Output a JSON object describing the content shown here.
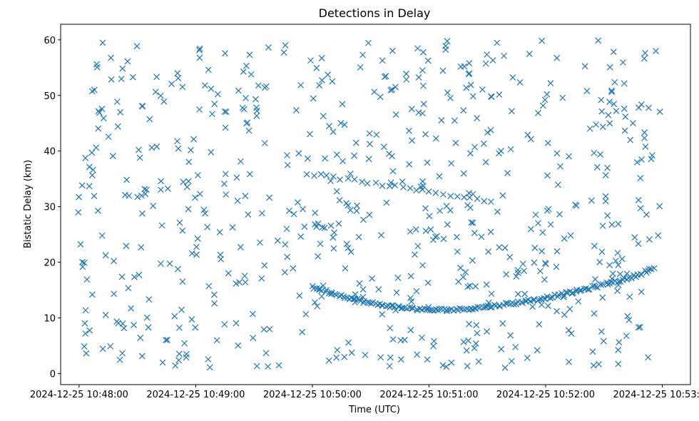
{
  "chart_data": {
    "type": "scatter",
    "title": "Detections in Delay",
    "xlabel": "Time (UTC)",
    "ylabel": "Bistatic Delay (km)",
    "x_ticks": [
      {
        "t": 0,
        "label": "2024-12-25 10:48:00"
      },
      {
        "t": 60,
        "label": "2024-12-25 10:49:00"
      },
      {
        "t": 120,
        "label": "2024-12-25 10:50:00"
      },
      {
        "t": 180,
        "label": "2024-12-25 10:51:00"
      },
      {
        "t": 240,
        "label": "2024-12-25 10:52:00"
      },
      {
        "t": 300,
        "label": "2024-12-25 10:53:00"
      }
    ],
    "y_ticks": [
      0,
      10,
      20,
      30,
      40,
      50,
      60
    ],
    "xlim": [
      -9.5,
      314.5
    ],
    "ylim": [
      -2.0,
      62.8
    ],
    "marker": "x",
    "color": "#1f77b4",
    "grid": false,
    "x_unit": "seconds after 10:48:00 UTC",
    "tracks": [
      {
        "x_start": 117,
        "x_end": 212,
        "y_start": 36.0,
        "y_end": 31.0,
        "n": 28,
        "name": "upper-track"
      },
      {
        "x_start": 120,
        "x_end": 296,
        "y_profile": [
          [
            120,
            15.5
          ],
          [
            135,
            14.0
          ],
          [
            150,
            12.6
          ],
          [
            165,
            11.9
          ],
          [
            180,
            11.4
          ],
          [
            195,
            11.5
          ],
          [
            210,
            12.0
          ],
          [
            225,
            12.7
          ],
          [
            240,
            13.6
          ],
          [
            255,
            14.7
          ],
          [
            270,
            16.0
          ],
          [
            285,
            17.4
          ],
          [
            296,
            19.0
          ]
        ],
        "n": 170,
        "name": "lower-track"
      }
    ],
    "clutter": {
      "x_range": [
        -1,
        300
      ],
      "y_range": [
        1,
        60
      ],
      "n": 640
    }
  }
}
